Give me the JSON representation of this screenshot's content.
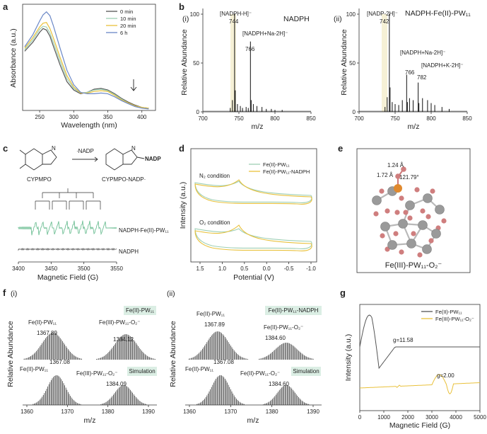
{
  "panel_labels": [
    "a",
    "b",
    "c",
    "d",
    "e",
    "f",
    "g"
  ],
  "chart_data": [
    {
      "id": "a",
      "type": "line",
      "xlabel": "Wavelength (nm)",
      "ylabel": "Absorbance (a.u.)",
      "xlim": [
        225,
        420
      ],
      "xticks": [
        "250",
        "300",
        "350",
        "400"
      ],
      "legend": [
        "0 min",
        "10 min",
        "20 min",
        "6 h"
      ],
      "colors": [
        "#555555",
        "#9fcfb4",
        "#e9c13b",
        "#6a87c6"
      ],
      "series": [
        {
          "name": "0 min",
          "x": [
            228,
            240,
            250,
            255,
            260,
            265,
            270,
            280,
            290,
            300,
            310,
            320,
            330,
            340,
            350,
            360,
            370,
            380,
            390,
            400,
            410
          ],
          "y": [
            0.78,
            0.9,
            1.03,
            1.08,
            1.06,
            0.98,
            0.85,
            0.6,
            0.38,
            0.27,
            0.22,
            0.24,
            0.28,
            0.29,
            0.27,
            0.22,
            0.16,
            0.11,
            0.07,
            0.04,
            0.03
          ]
        },
        {
          "name": "10 min",
          "x": [
            228,
            240,
            250,
            255,
            260,
            265,
            270,
            280,
            290,
            300,
            310,
            320,
            330,
            340,
            350,
            360,
            370,
            380,
            390,
            400,
            410
          ],
          "y": [
            0.8,
            0.93,
            1.07,
            1.11,
            1.1,
            1.02,
            0.9,
            0.65,
            0.42,
            0.29,
            0.23,
            0.24,
            0.27,
            0.28,
            0.26,
            0.21,
            0.15,
            0.1,
            0.06,
            0.04,
            0.03
          ]
        },
        {
          "name": "20 min",
          "x": [
            228,
            240,
            250,
            255,
            260,
            265,
            270,
            280,
            290,
            300,
            310,
            320,
            330,
            340,
            350,
            360,
            370,
            380,
            390,
            400,
            410
          ],
          "y": [
            0.82,
            0.96,
            1.1,
            1.15,
            1.16,
            1.08,
            0.96,
            0.7,
            0.46,
            0.31,
            0.23,
            0.23,
            0.25,
            0.26,
            0.25,
            0.2,
            0.14,
            0.1,
            0.06,
            0.04,
            0.03
          ]
        },
        {
          "name": "6 h",
          "x": [
            228,
            240,
            250,
            255,
            260,
            265,
            270,
            280,
            290,
            300,
            310,
            320,
            330,
            340,
            350,
            360,
            370,
            380,
            390,
            400,
            410
          ],
          "y": [
            0.84,
            1.0,
            1.18,
            1.26,
            1.3,
            1.25,
            1.12,
            0.82,
            0.53,
            0.34,
            0.24,
            0.22,
            0.22,
            0.23,
            0.22,
            0.18,
            0.13,
            0.09,
            0.05,
            0.03,
            0.02
          ]
        }
      ]
    },
    {
      "id": "b-i",
      "type": "bar",
      "subtitle": "(i)",
      "title": "NADPH",
      "xlabel": "m/z",
      "ylabel": "Relative Abundance",
      "xlim": [
        700,
        850
      ],
      "ylim": [
        0,
        100
      ],
      "xticks": [
        "700",
        "750",
        "800",
        "850"
      ],
      "yticks": [
        "0",
        "50",
        "100"
      ],
      "x": [
        738,
        741,
        744,
        745,
        748,
        752,
        755,
        760,
        763,
        766,
        767,
        770,
        775,
        782,
        788,
        795,
        800,
        810
      ],
      "values": [
        4,
        12,
        100,
        22,
        8,
        6,
        4,
        5,
        4,
        72,
        12,
        8,
        6,
        5,
        3,
        3,
        2,
        2
      ],
      "annotations": [
        "[NADPH-H]⁻",
        "744",
        "[NADPH+Na-2H]⁻",
        "766"
      ]
    },
    {
      "id": "b-ii",
      "type": "bar",
      "subtitle": "(ii)",
      "title": "NADPH-Fe(II)-PW₁₁",
      "xlabel": "m/z",
      "ylabel": "Relative Abundance",
      "xlim": [
        700,
        850
      ],
      "ylim": [
        0,
        100
      ],
      "xticks": [
        "700",
        "750",
        "800",
        "850"
      ],
      "yticks": [
        "0",
        "50",
        "100"
      ],
      "x": [
        736,
        739,
        742,
        743,
        746,
        750,
        755,
        760,
        766,
        767,
        770,
        775,
        782,
        783,
        788,
        795,
        800,
        805,
        815,
        825
      ],
      "values": [
        5,
        15,
        100,
        25,
        10,
        8,
        7,
        12,
        38,
        10,
        14,
        12,
        30,
        9,
        14,
        12,
        9,
        7,
        5,
        3
      ],
      "annotations": [
        "[NADP-2H]⁻",
        "742",
        "[NADPH+Na-2H]⁻",
        "766",
        "[NADPH+K-2H]⁻",
        "782"
      ]
    },
    {
      "id": "c",
      "type": "line",
      "xlabel": "Magnetic Field (G)",
      "xlim": [
        3400,
        3550
      ],
      "xticks": [
        "3400",
        "3450",
        "3500",
        "3550"
      ],
      "labels": [
        "CYPMPO",
        "CYPMPO-NADP·",
        "·NADP",
        "NADP",
        "NADPH-Fe(II)-PW₁₁",
        "NADPH"
      ]
    },
    {
      "id": "d",
      "type": "line",
      "xlabel": "Potential (V)",
      "ylabel": "Intensity (a.u.)",
      "xlim": [
        1.5,
        -1.0
      ],
      "xticks": [
        "1.5",
        "1.0",
        "0.5",
        "0.0",
        "-0.5",
        "-1.0"
      ],
      "legend": [
        "Fe(II)-PW₁₁",
        "Fe(II)-PW₁₁-NADPH"
      ],
      "colors": [
        "#9fcfb4",
        "#e9c13b"
      ],
      "conditions": [
        "N₂ condition",
        "O₂ condition"
      ]
    },
    {
      "id": "e",
      "type": "diagram",
      "caption": "Fe(III)-PW₁₁-O₂⁻",
      "labels": [
        "1.24 Å",
        "1.72 Å",
        "121.79°"
      ]
    },
    {
      "id": "f-i",
      "type": "bar",
      "subtitle": "(i)",
      "xlabel": "m/z",
      "ylabel": "Relative Abundance",
      "xlim": [
        1360,
        1390
      ],
      "xticks": [
        "1360",
        "1370",
        "1380",
        "1390"
      ],
      "boxes": [
        "Fe(II)-PW₁₁",
        "Simulation"
      ],
      "labels": [
        "Fe(II)-PW₁₁",
        "1367.89",
        "Fe(III)-PW₁₁-O₂⁻",
        "1384.12",
        "Fe(II)-PW₁₁",
        "1367.08",
        "Fe(III)-PW₁₁-O₂⁻",
        "1384.09"
      ]
    },
    {
      "id": "f-ii",
      "type": "bar",
      "subtitle": "(ii)",
      "xlabel": "m/z",
      "ylabel": "Relative Abundance",
      "xlim": [
        1360,
        1390
      ],
      "xticks": [
        "1360",
        "1370",
        "1380",
        "1390"
      ],
      "boxes": [
        "Fe(II)-PW₁₁-NADPH",
        "Simulation"
      ],
      "labels": [
        "Fe(II)-PW₁₁",
        "1367.89",
        "Fe(II)-PW₁₁-O₂⁻",
        "1384.60",
        "Fe(II)-PW₁₁",
        "1367.08",
        "Fe(II)-PW₁₁-O₂⁻",
        "1384.60"
      ]
    },
    {
      "id": "g",
      "type": "line",
      "xlabel": "Magnetic Field (G)",
      "ylabel": "Intensity (a.u.)",
      "xlim": [
        0,
        5000
      ],
      "xticks": [
        "0",
        "1000",
        "2000",
        "3000",
        "4000",
        "5000"
      ],
      "legend": [
        "Fe(II)-PW₁₁",
        "Fe(III)-PW₁₁-O₂⁻"
      ],
      "colors": [
        "#555555",
        "#e9c13b"
      ],
      "annotations": [
        "g=11.58",
        "g=2.00"
      ]
    }
  ]
}
